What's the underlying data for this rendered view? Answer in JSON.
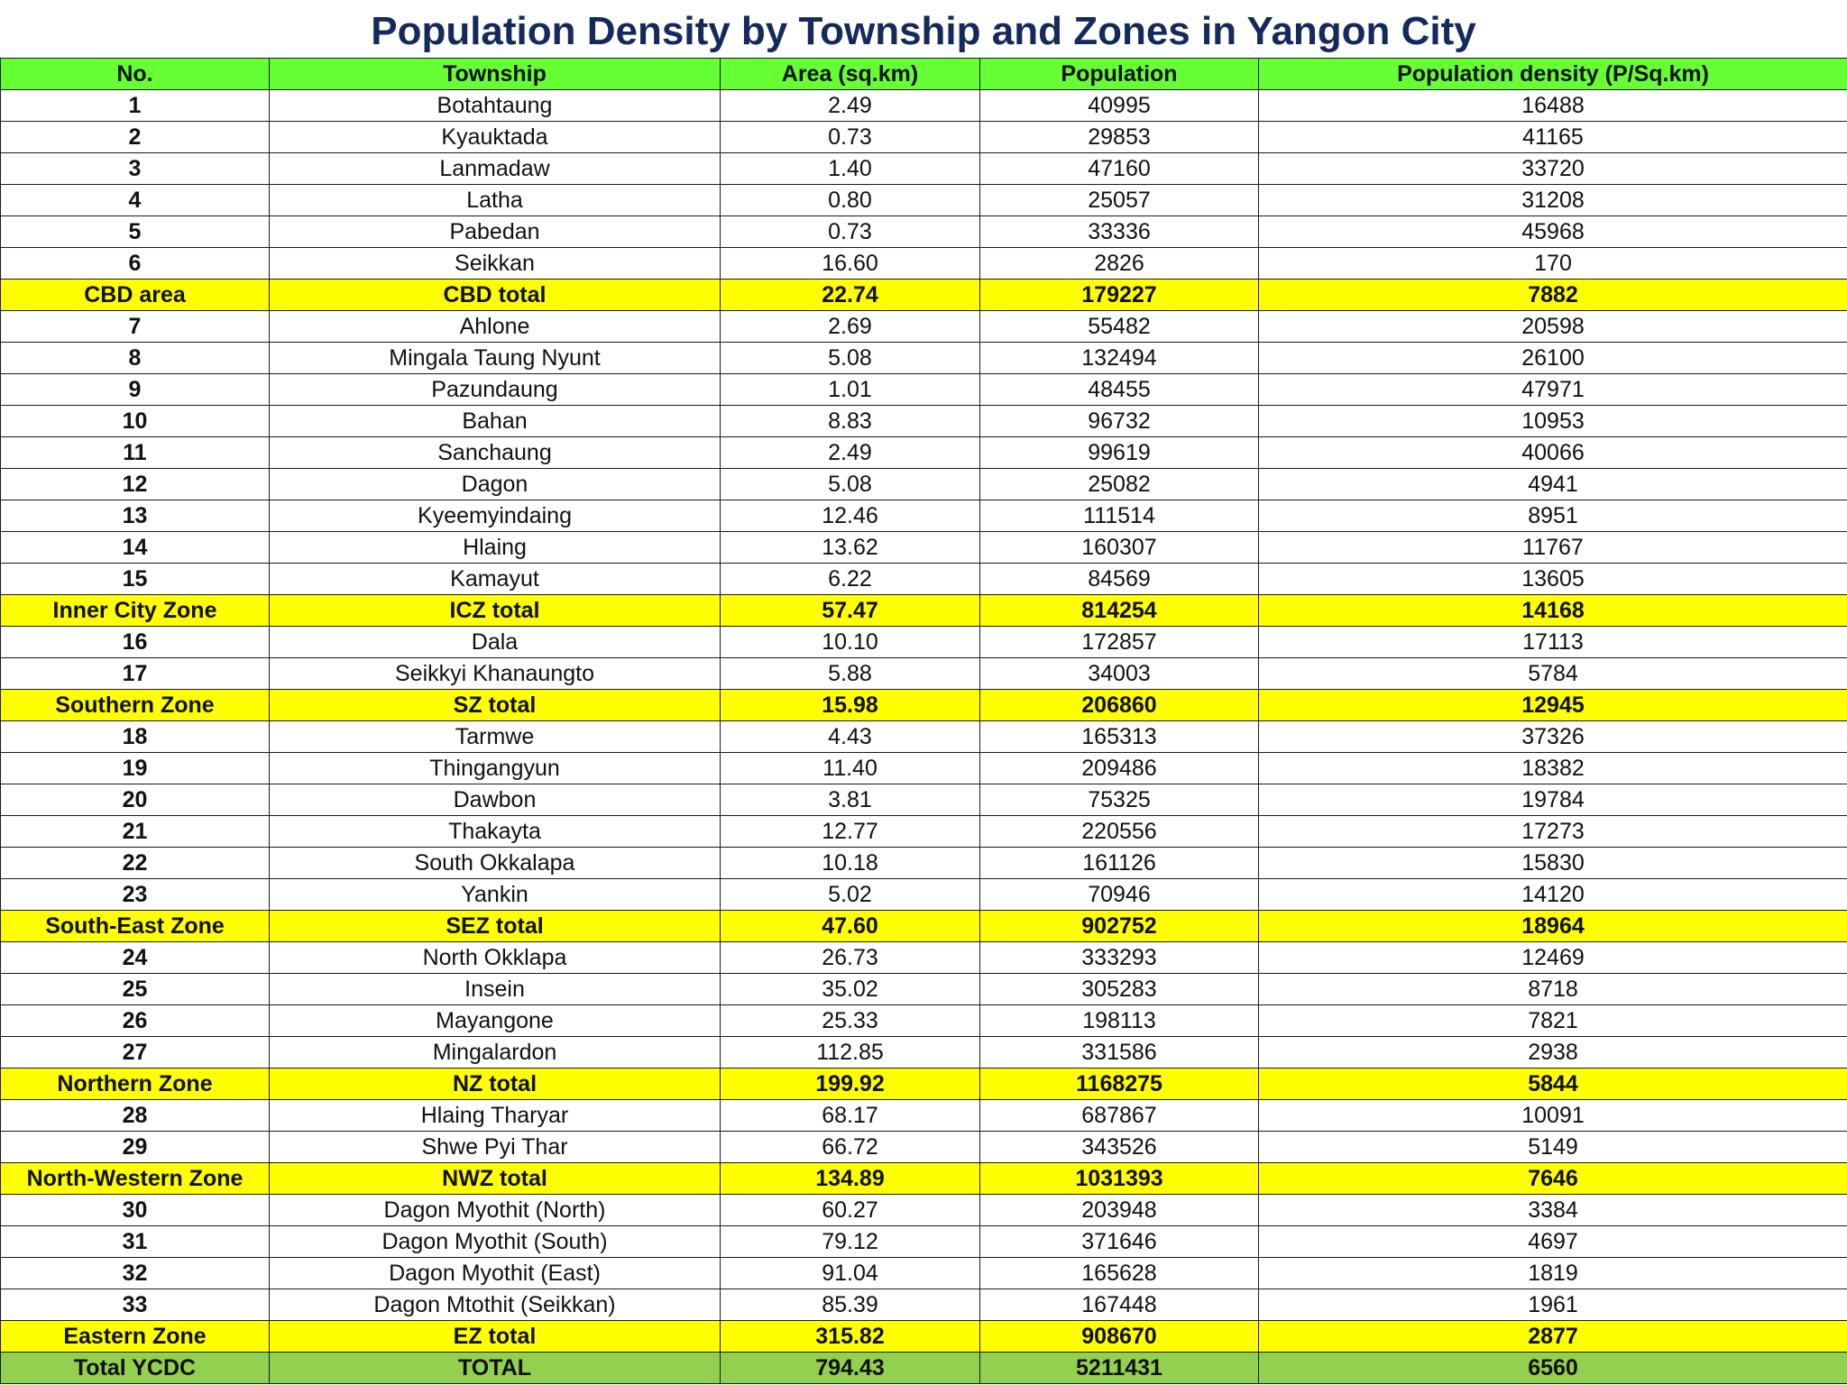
{
  "title": "Population Density by Township and Zones in Yangon City",
  "headers": [
    "No.",
    "Township",
    "Area (sq.km)",
    "Population",
    "Population density (P/Sq.km)"
  ],
  "rows": [
    {
      "type": "row",
      "cells": [
        "1",
        "Botahtaung",
        "2.49",
        "40995",
        "16488"
      ]
    },
    {
      "type": "row",
      "cells": [
        "2",
        "Kyauktada",
        "0.73",
        "29853",
        "41165"
      ]
    },
    {
      "type": "row",
      "cells": [
        "3",
        "Lanmadaw",
        "1.40",
        "47160",
        "33720"
      ]
    },
    {
      "type": "row",
      "cells": [
        "4",
        "Latha",
        "0.80",
        "25057",
        "31208"
      ]
    },
    {
      "type": "row",
      "cells": [
        "5",
        "Pabedan",
        "0.73",
        "33336",
        "45968"
      ]
    },
    {
      "type": "row",
      "cells": [
        "6",
        "Seikkan",
        "16.60",
        "2826",
        "170"
      ]
    },
    {
      "type": "sub",
      "cells": [
        "CBD area",
        "CBD total",
        "22.74",
        "179227",
        "7882"
      ]
    },
    {
      "type": "row",
      "cells": [
        "7",
        "Ahlone",
        "2.69",
        "55482",
        "20598"
      ]
    },
    {
      "type": "row",
      "cells": [
        "8",
        "Mingala Taung Nyunt",
        "5.08",
        "132494",
        "26100"
      ]
    },
    {
      "type": "row",
      "cells": [
        "9",
        "Pazundaung",
        "1.01",
        "48455",
        "47971"
      ]
    },
    {
      "type": "row",
      "cells": [
        "10",
        "Bahan",
        "8.83",
        "96732",
        "10953"
      ]
    },
    {
      "type": "row",
      "cells": [
        "11",
        "Sanchaung",
        "2.49",
        "99619",
        "40066"
      ]
    },
    {
      "type": "row",
      "cells": [
        "12",
        "Dagon",
        "5.08",
        "25082",
        "4941"
      ]
    },
    {
      "type": "row",
      "cells": [
        "13",
        "Kyeemyindaing",
        "12.46",
        "111514",
        "8951"
      ]
    },
    {
      "type": "row",
      "cells": [
        "14",
        "Hlaing",
        "13.62",
        "160307",
        "11767"
      ]
    },
    {
      "type": "row",
      "cells": [
        "15",
        "Kamayut",
        "6.22",
        "84569",
        "13605"
      ]
    },
    {
      "type": "sub",
      "cells": [
        "Inner City Zone",
        "ICZ total",
        "57.47",
        "814254",
        "14168"
      ]
    },
    {
      "type": "row",
      "cells": [
        "16",
        "Dala",
        "10.10",
        "172857",
        "17113"
      ]
    },
    {
      "type": "row",
      "cells": [
        "17",
        "Seikkyi Khanaungto",
        "5.88",
        "34003",
        "5784"
      ]
    },
    {
      "type": "sub",
      "cells": [
        "Southern Zone",
        "SZ total",
        "15.98",
        "206860",
        "12945"
      ]
    },
    {
      "type": "row",
      "cells": [
        "18",
        "Tarmwe",
        "4.43",
        "165313",
        "37326"
      ]
    },
    {
      "type": "row",
      "cells": [
        "19",
        "Thingangyun",
        "11.40",
        "209486",
        "18382"
      ]
    },
    {
      "type": "row",
      "cells": [
        "20",
        "Dawbon",
        "3.81",
        "75325",
        "19784"
      ]
    },
    {
      "type": "row",
      "cells": [
        "21",
        "Thakayta",
        "12.77",
        "220556",
        "17273"
      ]
    },
    {
      "type": "row",
      "cells": [
        "22",
        "South Okkalapa",
        "10.18",
        "161126",
        "15830"
      ]
    },
    {
      "type": "row",
      "cells": [
        "23",
        "Yankin",
        "5.02",
        "70946",
        "14120"
      ]
    },
    {
      "type": "sub",
      "cells": [
        "South-East Zone",
        "SEZ total",
        "47.60",
        "902752",
        "18964"
      ]
    },
    {
      "type": "row",
      "cells": [
        "24",
        "North Okklapa",
        "26.73",
        "333293",
        "12469"
      ]
    },
    {
      "type": "row",
      "cells": [
        "25",
        "Insein",
        "35.02",
        "305283",
        "8718"
      ]
    },
    {
      "type": "row",
      "cells": [
        "26",
        "Mayangone",
        "25.33",
        "198113",
        "7821"
      ]
    },
    {
      "type": "row",
      "cells": [
        "27",
        "Mingalardon",
        "112.85",
        "331586",
        "2938"
      ]
    },
    {
      "type": "sub",
      "cells": [
        "Northern Zone",
        "NZ total",
        "199.92",
        "1168275",
        "5844"
      ]
    },
    {
      "type": "row",
      "cells": [
        "28",
        "Hlaing Tharyar",
        "68.17",
        "687867",
        "10091"
      ]
    },
    {
      "type": "row",
      "cells": [
        "29",
        "Shwe Pyi Thar",
        "66.72",
        "343526",
        "5149"
      ]
    },
    {
      "type": "sub",
      "cells": [
        "North-Western Zone",
        "NWZ total",
        "134.89",
        "1031393",
        "7646"
      ]
    },
    {
      "type": "row",
      "cells": [
        "30",
        "Dagon Myothit (North)",
        "60.27",
        "203948",
        "3384"
      ]
    },
    {
      "type": "row",
      "cells": [
        "31",
        "Dagon Myothit (South)",
        "79.12",
        "371646",
        "4697"
      ]
    },
    {
      "type": "row",
      "cells": [
        "32",
        "Dagon Myothit (East)",
        "91.04",
        "165628",
        "1819"
      ]
    },
    {
      "type": "row",
      "cells": [
        "33",
        "Dagon Mtothit (Seikkan)",
        "85.39",
        "167448",
        "1961"
      ]
    },
    {
      "type": "sub",
      "cells": [
        "Eastern Zone",
        "EZ total",
        "315.82",
        "908670",
        "2877"
      ]
    },
    {
      "type": "total",
      "cells": [
        "Total YCDC",
        "TOTAL",
        "794.43",
        "5211431",
        "6560"
      ]
    }
  ],
  "colors": {
    "header_bg": "#66ff33",
    "subtotal_bg": "#ffff00",
    "total_bg": "#92d050",
    "title_color": "#142a5c"
  }
}
